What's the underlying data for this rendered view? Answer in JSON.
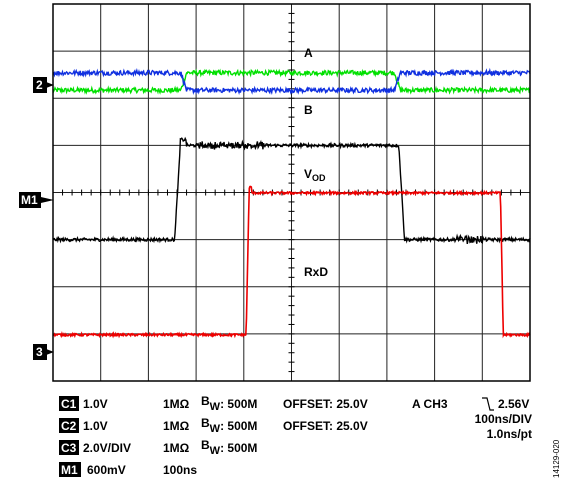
{
  "chart_data": {
    "type": "line",
    "grid": true,
    "time_base": "100ns/DIV",
    "trace_labels": {
      "a": "A",
      "b": "B",
      "vod_main": "V",
      "vod_sub": "OD",
      "rxd": "RxD"
    },
    "channel_markers": {
      "ch2": "2",
      "m1": "M1",
      "ch3": "3"
    },
    "series": [
      {
        "name": "A",
        "color": "#00e000",
        "levels": {
          "low": 6.17,
          "high": 6.54
        },
        "edges_div": [
          2.68,
          7.16
        ],
        "initial": "low"
      },
      {
        "name": "B",
        "color": "#1030e0",
        "levels": {
          "low": 6.17,
          "high": 6.54
        },
        "edges_div": [
          2.68,
          7.16
        ],
        "initial": "high"
      },
      {
        "name": "VOD",
        "color": "#000000",
        "levels": {
          "low": 3.0,
          "high": 5.0
        },
        "edges_div": [
          2.55,
          7.25
        ],
        "initial": "low"
      },
      {
        "name": "RxD",
        "color": "#ee0000",
        "levels": {
          "low": 0.98,
          "high": 3.99
        },
        "edges_div": [
          4.05,
          9.38
        ],
        "initial": "low"
      }
    ],
    "settings": [
      {
        "badge": "C1",
        "scale": "1.0V",
        "coupling": "1MΩ",
        "bw_main": "B",
        "bw_sub": "W",
        "bw_value": ": 500M",
        "offset": "OFFSET: 25.0V"
      },
      {
        "badge": "C2",
        "scale": "1.0V",
        "coupling": "1MΩ",
        "bw_main": "B",
        "bw_sub": "W",
        "bw_value": ": 500M",
        "offset": "OFFSET: 25.0V"
      },
      {
        "badge": "C3",
        "scale": "2.0V/DIV",
        "coupling": "1MΩ",
        "bw_main": "B",
        "bw_sub": "W",
        "bw_value": ": 500M",
        "offset": ""
      },
      {
        "badge": "M1",
        "scale": "600mV",
        "coupling": "100ns",
        "bw_main": "",
        "bw_sub": "",
        "bw_value": "",
        "offset": ""
      }
    ],
    "trigger": {
      "label": "A  CH3",
      "level": "2.56V",
      "timebase": "100ns/DIV",
      "resolution": "1.0ns/pt"
    },
    "figure_id": "14129-020"
  }
}
